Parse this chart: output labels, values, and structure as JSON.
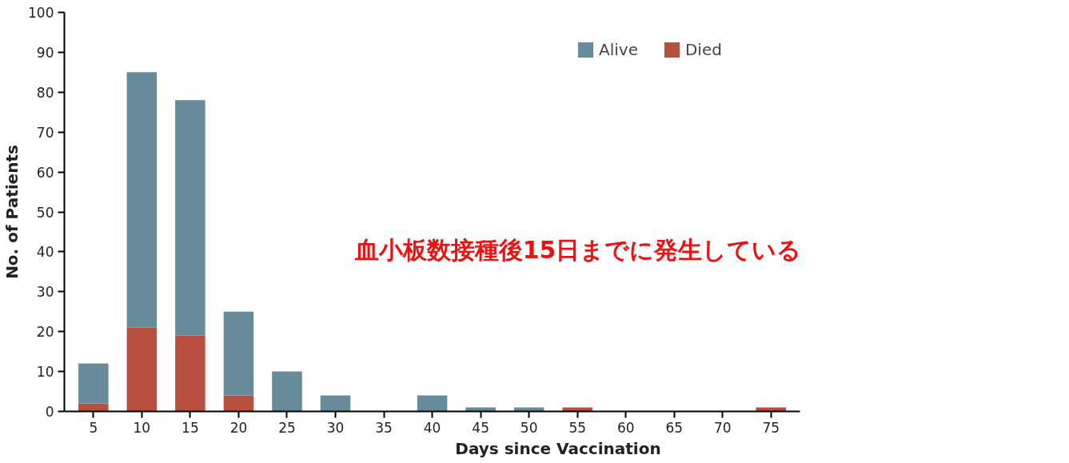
{
  "chart_data": {
    "type": "bar",
    "stacked": true,
    "xlabel": "Days since Vaccination",
    "ylabel": "No. of Patients",
    "categories": [
      "5",
      "10",
      "15",
      "20",
      "25",
      "30",
      "35",
      "40",
      "45",
      "50",
      "55",
      "60",
      "65",
      "70",
      "75"
    ],
    "series": [
      {
        "name": "Died",
        "color": "#b94f3e",
        "values": [
          2,
          21,
          19,
          4,
          0,
          0,
          0,
          0,
          0,
          0,
          1,
          0,
          0,
          0,
          1
        ]
      },
      {
        "name": "Alive",
        "color": "#668b9b",
        "values": [
          10,
          64,
          59,
          21,
          10,
          4,
          0,
          4,
          1,
          1,
          0,
          0,
          0,
          0,
          0
        ]
      }
    ],
    "ylim": [
      0,
      100
    ],
    "yticks": [
      0,
      10,
      20,
      30,
      40,
      50,
      60,
      70,
      80,
      90,
      100
    ],
    "grid": false,
    "legend": "top right",
    "annotations": [
      "血小板数接種後15日までに発生している"
    ]
  }
}
